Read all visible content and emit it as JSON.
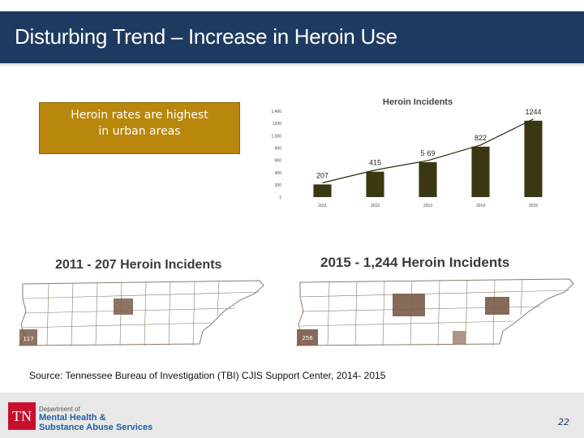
{
  "slide": {
    "title": "Disturbing Trend – Increase in Heroin Use",
    "callout": [
      "Heroin rates are highest",
      "in urban areas"
    ],
    "source": "Source: Tennessee Bureau of Investigation (TBI) CJIS Support Center, 2014- 2015",
    "page_number": "22"
  },
  "footer": {
    "logo_text": "TN",
    "dept_line1": "Department of",
    "dept_line2": "Mental Health &",
    "dept_line3": "Substance Abuse Services"
  },
  "maps": [
    {
      "title": "2011 - 207 Heroin Incidents",
      "highlight_label": "117"
    },
    {
      "title": "2015 - 1,244 Heroin Incidents",
      "highlight_label": "256"
    }
  ],
  "colors": {
    "header": "#1f3a60",
    "callout": "#b8870b",
    "bar": "#3b3811",
    "county": "#ffffff",
    "county_border": "#8a7a6a",
    "county_hot": "#7a5a48"
  },
  "chart_data": {
    "type": "bar",
    "title": "Heroin Incidents",
    "categories": [
      "2011",
      "2012",
      "2013",
      "2014",
      "2015"
    ],
    "values": [
      207,
      415,
      569,
      822,
      1244
    ],
    "value_labels": [
      "207",
      "415",
      "5·69",
      "822",
      "1244"
    ],
    "trend_line": true,
    "yticks": [
      1,
      200,
      400,
      600,
      800,
      1000,
      1200,
      1400
    ],
    "ytick_labels": [
      "1",
      "200",
      "400",
      "600",
      "800",
      "1,000",
      "1200",
      "1,400"
    ],
    "ylim": [
      1,
      1400
    ],
    "xlabel": "",
    "ylabel": ""
  }
}
